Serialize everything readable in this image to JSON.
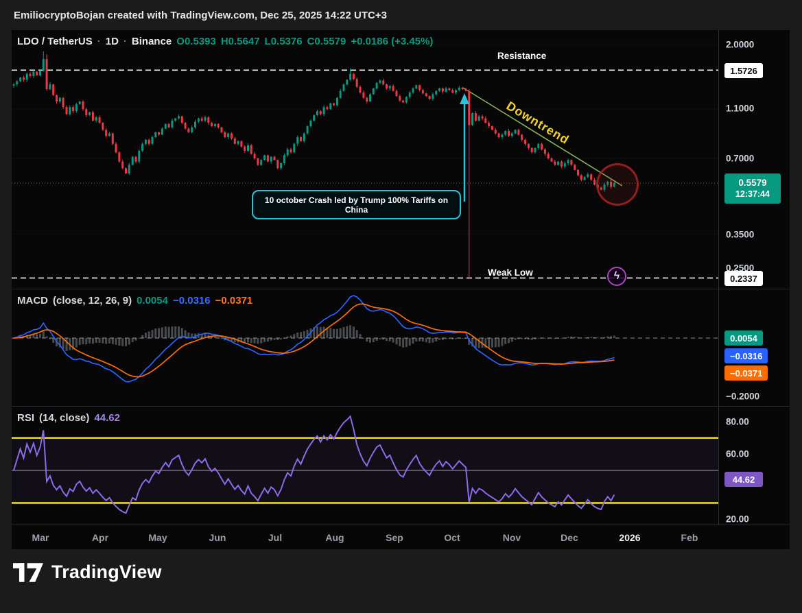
{
  "topbar": {
    "credit": "EmiliocryptoBojan created with TradingView.com, Dec 25, 2025 14:22 UTC+3"
  },
  "main_pane": {
    "legend": {
      "symbol": "LDO / TetherUS",
      "sep": "·",
      "interval": "1D",
      "exchange": "Binance",
      "values": [
        "O0.5393",
        "H0.5647",
        "L0.5376",
        "C0.5579",
        "+0.0186 (+3.45%)"
      ]
    },
    "annotations": {
      "resistance": "Resistance",
      "downtrend": "Downtrend",
      "weak_low": "Weak Low",
      "callout": "10 october Crash led by Trump 100% Tariffs on China",
      "lightning_glyph": "ϟ"
    }
  },
  "macd_pane": {
    "legend": {
      "title": "MACD",
      "params": "(close, 12, 26, 9)",
      "hist": "0.0054",
      "macd": "−0.0316",
      "signal": "−0.0371"
    }
  },
  "rsi_pane": {
    "legend": {
      "title": "RSI",
      "params": "(14, close)",
      "value": "44.62"
    }
  },
  "price_axis": {
    "ticks": [
      "2.0000",
      "1.1000",
      "0.7000",
      "0.3500",
      "0.2500"
    ],
    "badges": {
      "resistance": "1.5726",
      "price": "0.5579",
      "countdown": "12:37:44",
      "weak_low": "0.2337",
      "macd_hist": "0.0054",
      "macd_line": "−0.0316",
      "macd_signal": "−0.0371",
      "macd_tick": "−0.2000",
      "rsi_tick_80": "80.00",
      "rsi_tick_60": "60.00",
      "rsi_tick_20": "20.00",
      "rsi_value": "44.62"
    }
  },
  "time_axis": {
    "labels": [
      "Mar",
      "Apr",
      "May",
      "Jun",
      "Jul",
      "Aug",
      "Sep",
      "Oct",
      "Nov",
      "Dec",
      "2026",
      "Feb"
    ]
  },
  "footer": {
    "brand": "TradingView"
  },
  "colors": {
    "up": "#089981",
    "down": "#f23645",
    "macd": "#2962ff",
    "signal": "#ff6d00",
    "hist": "#9aa0a9",
    "rsi": "#8d6ae8",
    "band_yellow": "#f8e71c",
    "cyan": "#26c6da",
    "trendline": "#9ccc65",
    "downtrend_text": "#f5d327",
    "accent_teal": "#089981"
  },
  "chart_data": [
    {
      "type": "candlestick",
      "symbol": "LDO/TetherUS",
      "timeframe": "1D",
      "exchange": "Binance",
      "scale": "log",
      "y_ticks": [
        2.0,
        1.1,
        0.7,
        0.35
      ],
      "levels": {
        "resistance": 1.5726,
        "weak_low": 0.2337,
        "last_price": 0.5579
      },
      "ohlc_displayed": {
        "open": 0.5393,
        "high": 0.5647,
        "low": 0.5376,
        "close": 0.5579,
        "change": "+0.0186 (+3.45%)"
      },
      "closes": [
        1.38,
        1.42,
        1.47,
        1.44,
        1.52,
        1.49,
        1.55,
        1.5,
        1.56,
        1.74,
        1.32,
        1.38,
        1.25,
        1.18,
        1.22,
        1.12,
        1.05,
        1.12,
        1.08,
        1.15,
        1.18,
        1.1,
        1.04,
        1.07,
        0.99,
        1.02,
        0.97,
        0.91,
        0.86,
        0.88,
        0.8,
        0.74,
        0.68,
        0.64,
        0.61,
        0.66,
        0.71,
        0.68,
        0.75,
        0.8,
        0.83,
        0.8,
        0.85,
        0.89,
        0.87,
        0.92,
        0.96,
        0.93,
        0.99,
        1.01,
        1.03,
        0.97,
        0.92,
        0.89,
        0.93,
        0.98,
        1.01,
        0.99,
        1.02,
        0.97,
        0.94,
        0.96,
        0.93,
        0.89,
        0.85,
        0.88,
        0.84,
        0.8,
        0.82,
        0.78,
        0.75,
        0.79,
        0.73,
        0.7,
        0.66,
        0.69,
        0.72,
        0.68,
        0.71,
        0.69,
        0.64,
        0.67,
        0.72,
        0.76,
        0.74,
        0.8,
        0.85,
        0.82,
        0.88,
        0.94,
        0.99,
        1.04,
        1.08,
        1.05,
        1.12,
        1.1,
        1.16,
        1.14,
        1.22,
        1.3,
        1.38,
        1.44,
        1.52,
        1.45,
        1.35,
        1.28,
        1.22,
        1.18,
        1.26,
        1.33,
        1.4,
        1.43,
        1.38,
        1.33,
        1.36,
        1.3,
        1.24,
        1.19,
        1.17,
        1.23,
        1.28,
        1.33,
        1.37,
        1.31,
        1.27,
        1.24,
        1.21,
        1.26,
        1.3,
        1.33,
        1.29,
        1.33,
        1.31,
        1.28,
        1.31,
        1.34,
        1.32,
        1.3,
        0.95,
        1.06,
        0.99,
        1.03,
        1.01,
        0.97,
        0.94,
        0.91,
        0.88,
        0.85,
        0.87,
        0.9,
        0.86,
        0.88,
        0.91,
        0.87,
        0.83,
        0.8,
        0.77,
        0.74,
        0.77,
        0.8,
        0.76,
        0.73,
        0.7,
        0.68,
        0.66,
        0.68,
        0.65,
        0.67,
        0.69,
        0.66,
        0.63,
        0.6,
        0.575,
        0.59,
        0.605,
        0.575,
        0.55,
        0.535,
        0.525,
        0.55,
        0.565,
        0.5393,
        0.5579
      ],
      "overrides": {
        "9": {
          "high": 1.87
        },
        "10": {
          "high": 1.82
        },
        "102": {
          "high": 1.6
        },
        "138": {
          "low": 0.2337,
          "high": 1.32
        },
        "182": {
          "high": 0.5647,
          "low": 0.5376
        }
      },
      "annotations": {
        "resistance_line": 1.5726,
        "weak_low_line": 0.2337,
        "crash_date": "10 october",
        "crash_note": "10 october Crash led by Trump 100% Tariffs on China",
        "trend": "Downtrend"
      }
    },
    {
      "type": "line",
      "name": "MACD",
      "inputs": "close, 12, 26, 9",
      "values_displayed": {
        "histogram": 0.0054,
        "macd": -0.0316,
        "signal": -0.0371
      },
      "y_axis_tick": -0.2,
      "zero_line_dashed": true
    },
    {
      "type": "line",
      "name": "RSI",
      "inputs": "14, close",
      "value_displayed": 44.62,
      "bands": [
        70,
        30
      ],
      "mid_band": 50,
      "y_axis_ticks": [
        80,
        60,
        20
      ]
    }
  ]
}
